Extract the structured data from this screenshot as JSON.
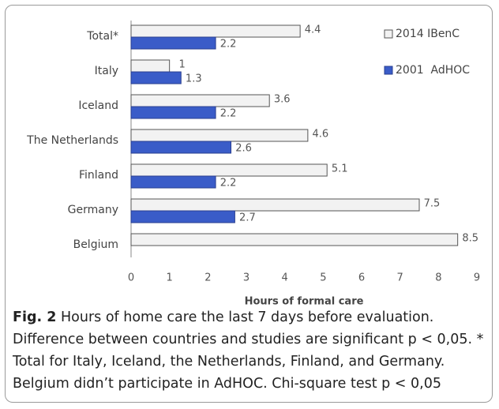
{
  "chart_data": {
    "type": "bar",
    "orientation": "horizontal",
    "categories": [
      "Total*",
      "Italy",
      "Iceland",
      "The Netherlands",
      "Finland",
      "Germany",
      "Belgium"
    ],
    "series": [
      {
        "name": "2014 IBenC",
        "color": "#f2f2f2",
        "values": [
          4.4,
          1,
          3.6,
          4.6,
          5.1,
          7.5,
          8.5
        ]
      },
      {
        "name": "2001  AdHOC",
        "color": "#3a5cc8",
        "values": [
          2.2,
          1.3,
          2.2,
          2.6,
          2.2,
          2.7,
          null
        ]
      }
    ],
    "xlabel": "Hours of formal care",
    "xlim": [
      0,
      9
    ],
    "xticks": [
      0,
      1,
      2,
      3,
      4,
      5,
      6,
      7,
      8,
      9
    ],
    "legend": "upper right",
    "grid": false
  },
  "caption": {
    "label": "Fig. 2",
    "text": "Hours of home care the last 7 days before evaluation. Difference between countries and studies are significant p < 0,05. * Total for Italy, Iceland, the Netherlands, Finland, and Germany. Belgium didn’t participate in AdHOC. Chi-square test p < 0,05"
  }
}
